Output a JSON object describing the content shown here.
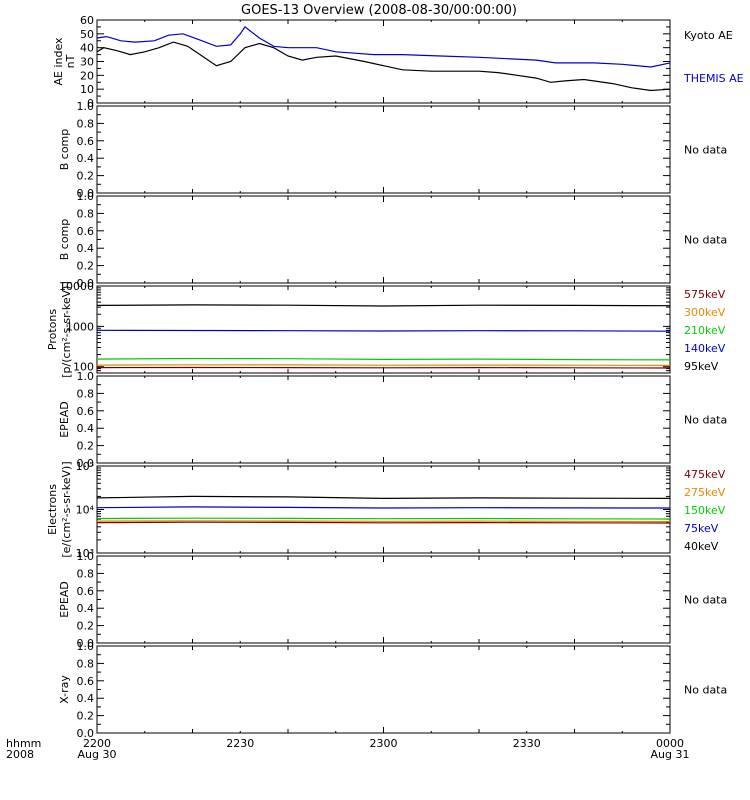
{
  "title": "GOES-13 Overview (2008-08-30/00:00:00)",
  "time_axis": {
    "corner_top": "hhmm",
    "corner_bottom": "2008",
    "ticks": [
      {
        "label": "2200",
        "sub": "Aug 30"
      },
      {
        "label": "2230",
        "sub": ""
      },
      {
        "label": "2300",
        "sub": ""
      },
      {
        "label": "2330",
        "sub": ""
      },
      {
        "label": "0000",
        "sub": "Aug 31"
      }
    ]
  },
  "chart_data": [
    {
      "type": "line",
      "ylabel": "AE index",
      "yunit": "nT",
      "yscale": "linear",
      "ylim": [
        0,
        60
      ],
      "yticks": [
        "0",
        "10",
        "20",
        "30",
        "40",
        "50",
        "60"
      ],
      "series": [
        {
          "name": "Kyoto AE",
          "color": "#000000",
          "x": [
            0,
            0.7,
            2,
            3.5,
            5,
            6.5,
            8,
            9.5,
            11,
            12.5,
            14,
            15.5,
            17,
            18.5,
            20,
            21.5,
            23,
            25,
            28,
            30,
            32,
            35,
            38,
            40,
            42,
            44,
            46,
            47.5,
            49,
            51,
            54,
            56,
            58,
            60
          ],
          "y": [
            37,
            40,
            38,
            35,
            37,
            40,
            44,
            41,
            34,
            27,
            30,
            40,
            43,
            40,
            34,
            31,
            33,
            34,
            30,
            27,
            24,
            23,
            23,
            23,
            22,
            20,
            18,
            15,
            16,
            17,
            14,
            11,
            9,
            10
          ]
        },
        {
          "name": "THEMIS AE",
          "color": "#0000cc",
          "x": [
            0,
            1,
            2.5,
            4,
            6,
            7.5,
            9,
            11,
            12.5,
            14,
            15,
            15.5,
            17,
            18.5,
            20,
            23,
            25,
            27,
            29,
            32,
            36,
            40,
            43,
            46,
            48,
            52,
            55,
            58,
            60
          ],
          "y": [
            47,
            48,
            45,
            44,
            45,
            49,
            50,
            45,
            41,
            42,
            50,
            55,
            47,
            41,
            40,
            40,
            37,
            36,
            35,
            35,
            34,
            33,
            32,
            31,
            29,
            29,
            28,
            26,
            29
          ]
        }
      ],
      "legend_colors": [
        "#000000",
        "#0000cc"
      ]
    },
    {
      "type": "line",
      "ylabel": "B comp",
      "yscale": "linear",
      "ylim": [
        0,
        1
      ],
      "yticks": [
        "0.0",
        "0.2",
        "0.4",
        "0.6",
        "0.8",
        "1.0"
      ],
      "series": [],
      "message": "No data"
    },
    {
      "type": "line",
      "ylabel": "B comp",
      "yscale": "linear",
      "ylim": [
        0,
        1
      ],
      "yticks": [
        "0.0",
        "0.2",
        "0.4",
        "0.6",
        "0.8",
        "1.0"
      ],
      "series": [],
      "message": "No data"
    },
    {
      "type": "line",
      "ylabel": "Protons",
      "ylabel2": "[p/(cm²-s-sr-keV)]",
      "yscale": "log",
      "ylim": [
        70,
        10000
      ],
      "yticks": [
        {
          "value": 100,
          "label": "100"
        },
        {
          "value": 1000,
          "label": "1000"
        },
        {
          "value": 10000,
          "label": "10000"
        }
      ],
      "series": [
        {
          "name": "575keV",
          "color": "#7a0000",
          "x": [
            0,
            10,
            20,
            30,
            40,
            50,
            60
          ],
          "y": [
            95,
            96,
            95,
            94,
            95,
            94,
            93
          ]
        },
        {
          "name": "300keV",
          "color": "#e08a00",
          "x": [
            0,
            10,
            20,
            30,
            40,
            50,
            60
          ],
          "y": [
            110,
            112,
            111,
            109,
            110,
            109,
            108
          ]
        },
        {
          "name": "210keV",
          "color": "#00cc00",
          "x": [
            0,
            10,
            20,
            30,
            40,
            50,
            60
          ],
          "y": [
            155,
            160,
            158,
            152,
            155,
            150,
            148
          ]
        },
        {
          "name": "140keV",
          "color": "#0000cc",
          "x": [
            0,
            10,
            20,
            30,
            40,
            50,
            60
          ],
          "y": [
            800,
            790,
            780,
            770,
            780,
            775,
            760
          ]
        },
        {
          "name": "95keV",
          "color": "#000000",
          "x": [
            0,
            10,
            20,
            30,
            40,
            50,
            60
          ],
          "y": [
            3300,
            3400,
            3350,
            3200,
            3350,
            3300,
            3250
          ]
        }
      ]
    },
    {
      "type": "line",
      "ylabel": "EPEAD",
      "yscale": "linear",
      "ylim": [
        0,
        1
      ],
      "yticks": [
        "0.0",
        "0.2",
        "0.4",
        "0.6",
        "0.8",
        "1.0"
      ],
      "series": [],
      "message": "No data"
    },
    {
      "type": "line",
      "ylabel": "Electrons",
      "ylabel2": "[e/(cm²-s-sr-keV)]",
      "yscale": "log",
      "ylim": [
        1000,
        100000
      ],
      "yticks": [
        {
          "value": 1000,
          "label": "10³"
        },
        {
          "value": 10000,
          "label": "10⁴"
        },
        {
          "value": 100000,
          "label": "10⁵"
        }
      ],
      "series": [
        {
          "name": "475keV",
          "color": "#7a0000",
          "x": [
            0,
            10,
            20,
            30,
            40,
            50,
            60
          ],
          "y": [
            5000,
            5100,
            5050,
            4950,
            5000,
            4950,
            4900
          ]
        },
        {
          "name": "275keV",
          "color": "#e08a00",
          "x": [
            0,
            10,
            20,
            30,
            40,
            50,
            60
          ],
          "y": [
            5400,
            5500,
            5450,
            5350,
            5400,
            5350,
            5300
          ]
        },
        {
          "name": "150keV",
          "color": "#00cc00",
          "x": [
            0,
            10,
            20,
            30,
            40,
            50,
            60
          ],
          "y": [
            6200,
            6300,
            6250,
            6150,
            6200,
            6100,
            6050
          ]
        },
        {
          "name": "75keV",
          "color": "#0000cc",
          "x": [
            0,
            10,
            20,
            30,
            40,
            50,
            60
          ],
          "y": [
            11000,
            11500,
            11200,
            10800,
            11000,
            10900,
            10800
          ]
        },
        {
          "name": "40keV",
          "color": "#000000",
          "x": [
            0,
            10,
            20,
            30,
            40,
            50,
            60
          ],
          "y": [
            18500,
            20000,
            19500,
            18000,
            18500,
            18200,
            18000
          ]
        }
      ]
    },
    {
      "type": "line",
      "ylabel": "EPEAD",
      "yscale": "linear",
      "ylim": [
        0,
        1
      ],
      "yticks": [
        "0.0",
        "0.2",
        "0.4",
        "0.6",
        "0.8",
        "1.0"
      ],
      "series": [],
      "message": "No data"
    },
    {
      "type": "line",
      "ylabel": "X-ray",
      "yscale": "linear",
      "ylim": [
        0,
        1
      ],
      "yticks": [
        "0.0",
        "0.2",
        "0.4",
        "0.6",
        "0.8",
        "1.0"
      ],
      "series": [],
      "message": "No data"
    }
  ]
}
